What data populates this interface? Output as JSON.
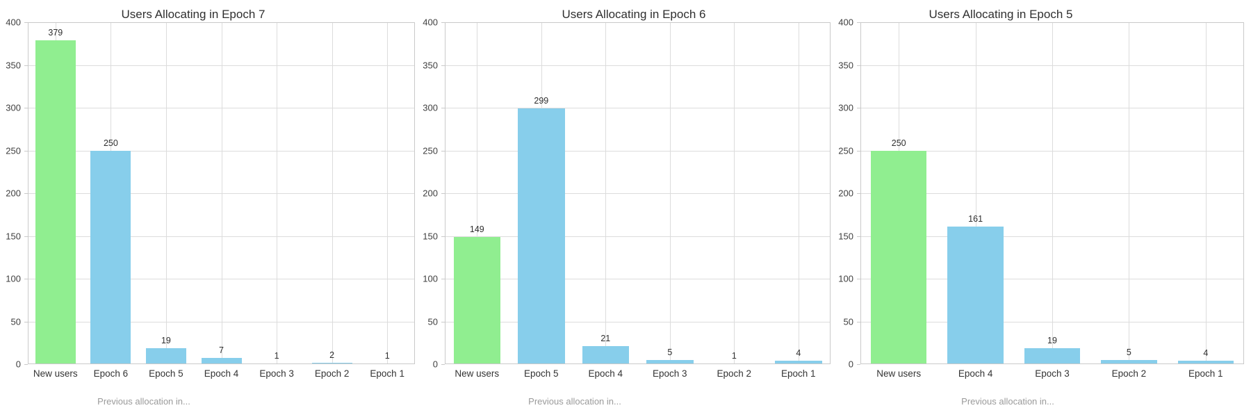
{
  "figure": {
    "background": "#ffffff"
  },
  "colors": {
    "new_users_bar": "#90EE90",
    "previous_epoch_bar": "#87CEEB",
    "gridline": "#dcdcdc",
    "axis_border": "#c9c9c9",
    "title_text": "#2f2f2f",
    "tick_text": "#3f3f3f",
    "value_text": "#2e2e2e",
    "xaxis_title_text": "#9a9a9a"
  },
  "chart_data": [
    {
      "type": "bar",
      "title": "Users Allocating in Epoch 7",
      "xlabel": "Previous allocation in...",
      "categories": [
        "New users",
        "Epoch 6",
        "Epoch 5",
        "Epoch 4",
        "Epoch 3",
        "Epoch 2",
        "Epoch 1"
      ],
      "values": [
        379,
        250,
        19,
        7,
        1,
        2,
        1
      ],
      "ylim": [
        0,
        400
      ],
      "ytick_labels": [
        "0",
        "50",
        "100",
        "150",
        "200",
        "250",
        "300",
        "350",
        "400"
      ],
      "grid": true,
      "legend_position": "none"
    },
    {
      "type": "bar",
      "title": "Users Allocating in Epoch 6",
      "xlabel": "Previous allocation in...",
      "categories": [
        "New users",
        "Epoch 5",
        "Epoch 4",
        "Epoch 3",
        "Epoch 2",
        "Epoch 1"
      ],
      "values": [
        149,
        299,
        21,
        5,
        1,
        4
      ],
      "ylim": [
        0,
        400
      ],
      "ytick_labels": [
        "0",
        "50",
        "100",
        "150",
        "200",
        "250",
        "300",
        "350",
        "400"
      ],
      "grid": true,
      "legend_position": "none"
    },
    {
      "type": "bar",
      "title": "Users Allocating in Epoch 5",
      "xlabel": "Previous allocation in...",
      "categories": [
        "New users",
        "Epoch 4",
        "Epoch 3",
        "Epoch 2",
        "Epoch 1"
      ],
      "values": [
        250,
        161,
        19,
        5,
        4
      ],
      "ylim": [
        0,
        400
      ],
      "ytick_labels": [
        "0",
        "50",
        "100",
        "150",
        "200",
        "250",
        "300",
        "350",
        "400"
      ],
      "grid": true,
      "legend_position": "none"
    }
  ]
}
